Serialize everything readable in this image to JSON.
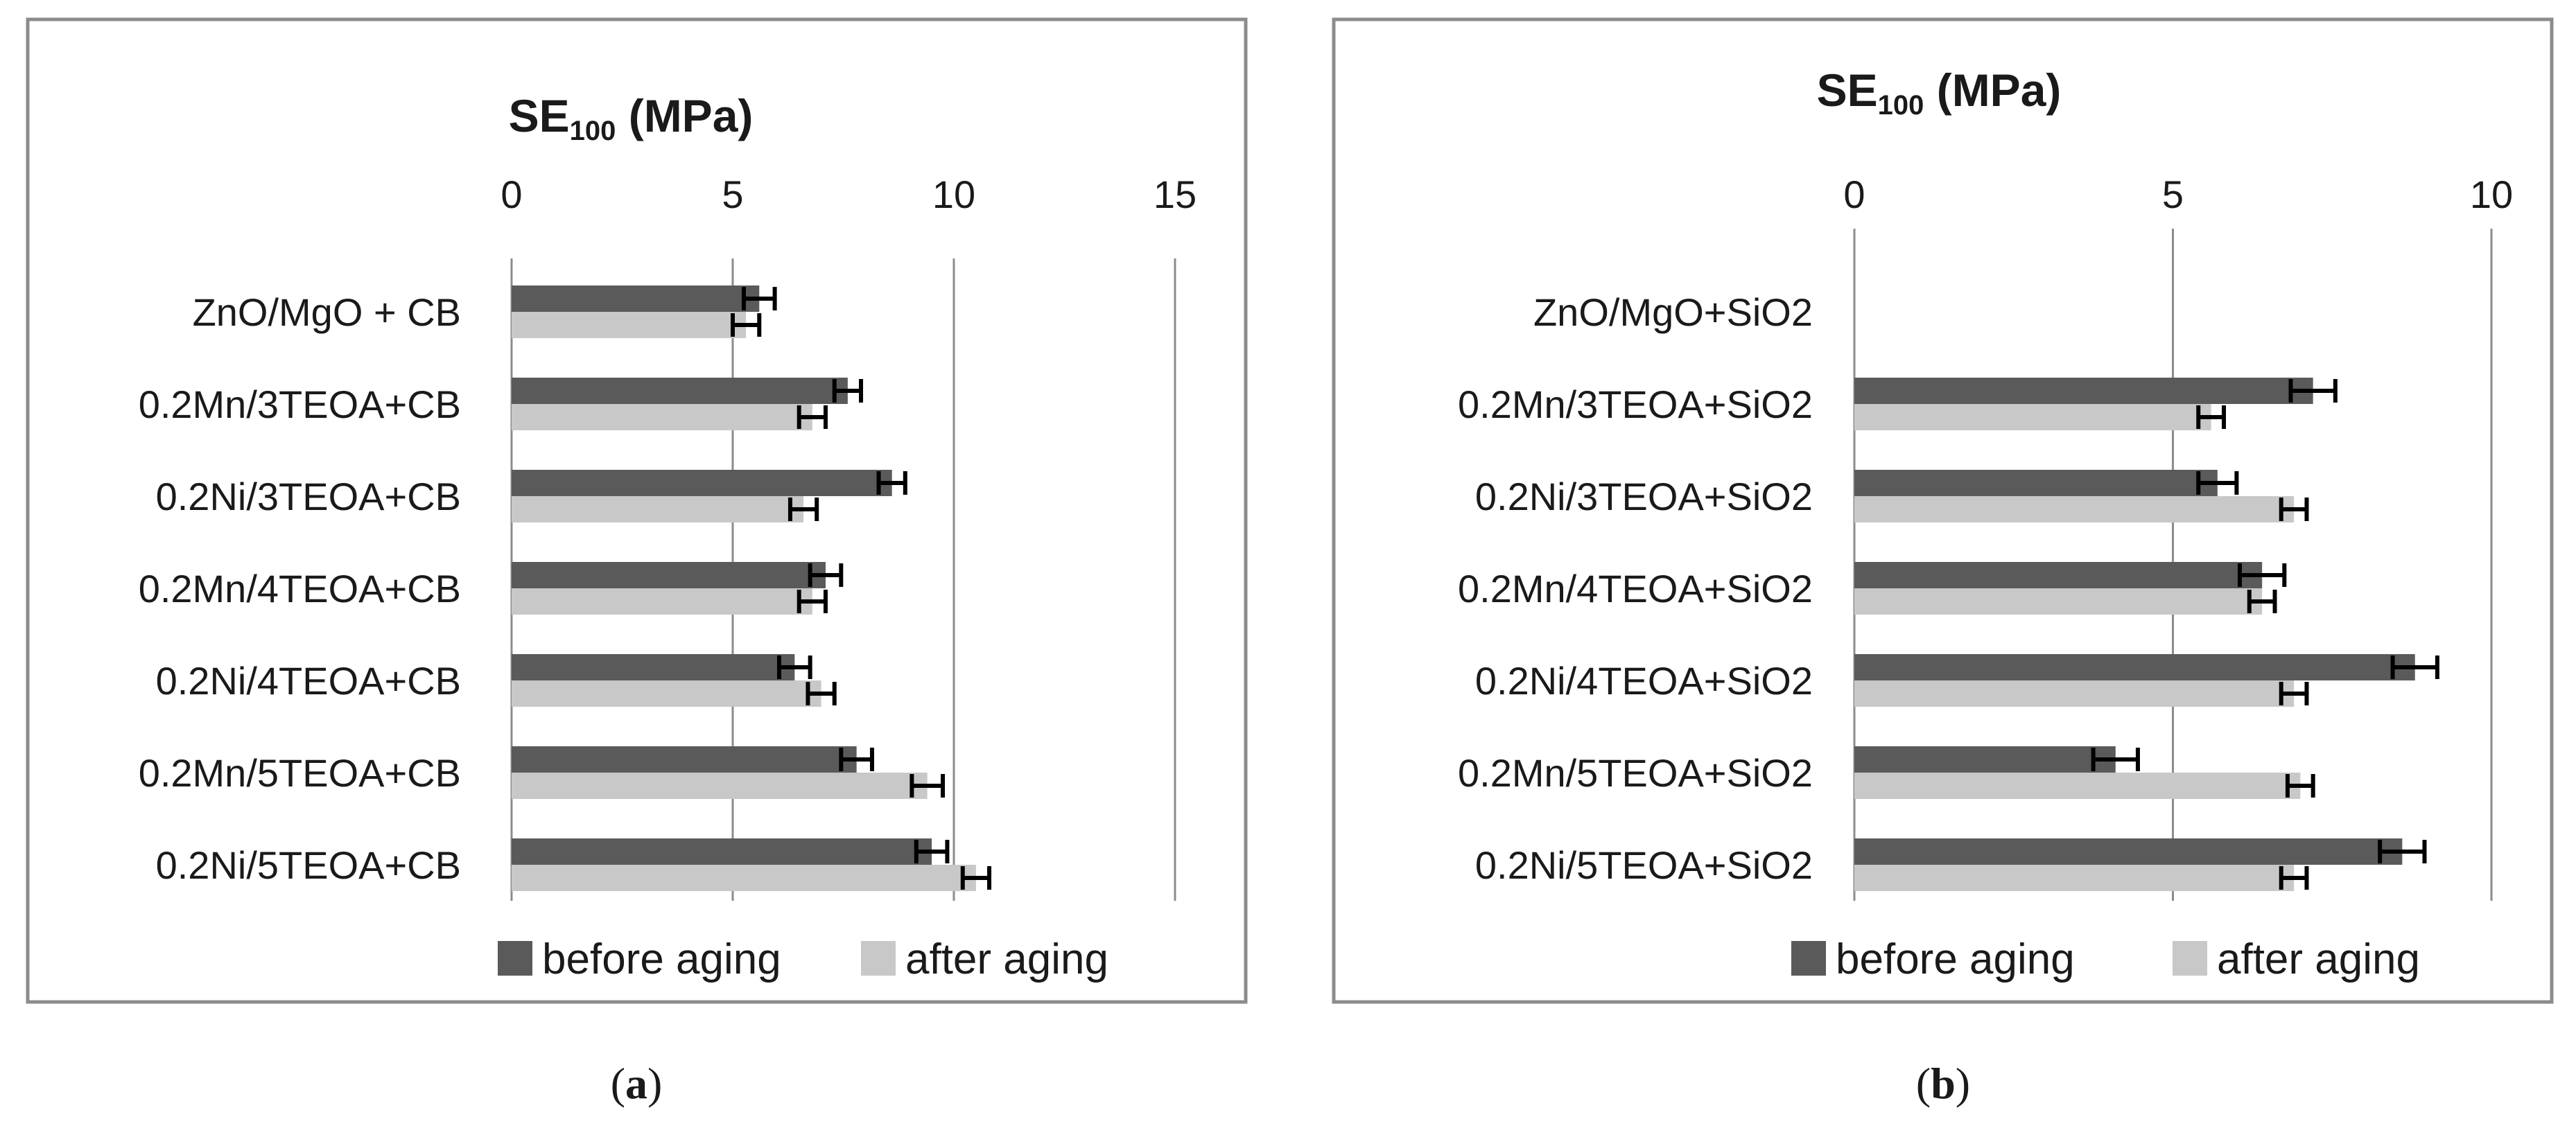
{
  "series_names": [
    "before aging",
    "after aging"
  ],
  "colors": {
    "before": "#5a5a5a",
    "after": "#c8c8c8",
    "frame": "#8c8c8c"
  },
  "chart_data": [
    {
      "type": "bar",
      "orientation": "horizontal",
      "panel_label": "a",
      "title_main": "SE",
      "title_sub": "100",
      "title_unit": " (MPa)",
      "xlim": [
        0,
        15
      ],
      "xticks": [
        0,
        5,
        10,
        15
      ],
      "categories": [
        "ZnO/MgO + CB",
        "0.2Mn/3TEOA+CB",
        "0.2Ni/3TEOA+CB",
        "0.2Mn/4TEOA+CB",
        "0.2Ni/4TEOA+CB",
        "0.2Mn/5TEOA+CB",
        "0.2Ni/5TEOA+CB"
      ],
      "series": [
        {
          "name": "before aging",
          "values": [
            5.6,
            7.6,
            8.6,
            7.1,
            6.4,
            7.8,
            9.5
          ],
          "errors": [
            0.35,
            0.3,
            0.3,
            0.35,
            0.35,
            0.35,
            0.35
          ]
        },
        {
          "name": "after aging",
          "values": [
            5.3,
            6.8,
            6.6,
            6.8,
            7.0,
            9.4,
            10.5
          ],
          "errors": [
            0.3,
            0.3,
            0.3,
            0.3,
            0.3,
            0.35,
            0.3
          ]
        }
      ],
      "legend": "bottom"
    },
    {
      "type": "bar",
      "orientation": "horizontal",
      "panel_label": "b",
      "title_main": "SE",
      "title_sub": "100",
      "title_unit": " (MPa)",
      "xlim": [
        0,
        10
      ],
      "xticks": [
        0,
        5,
        10
      ],
      "categories": [
        "ZnO/MgO+SiO2",
        "0.2Mn/3TEOA+SiO2",
        "0.2Ni/3TEOA+SiO2",
        "0.2Mn/4TEOA+SiO2",
        "0.2Ni/4TEOA+SiO2",
        "0.2Mn/5TEOA+SiO2",
        "0.2Ni/5TEOA+SiO2"
      ],
      "series": [
        {
          "name": "before aging",
          "values": [
            null,
            7.2,
            5.7,
            6.4,
            8.8,
            4.1,
            8.6
          ],
          "errors": [
            null,
            0.35,
            0.3,
            0.35,
            0.35,
            0.35,
            0.35
          ]
        },
        {
          "name": "after aging",
          "values": [
            null,
            5.6,
            6.9,
            6.4,
            6.9,
            7.0,
            6.9
          ],
          "errors": [
            null,
            0.2,
            0.2,
            0.2,
            0.2,
            0.2,
            0.2
          ]
        }
      ],
      "legend": "bottom"
    }
  ]
}
